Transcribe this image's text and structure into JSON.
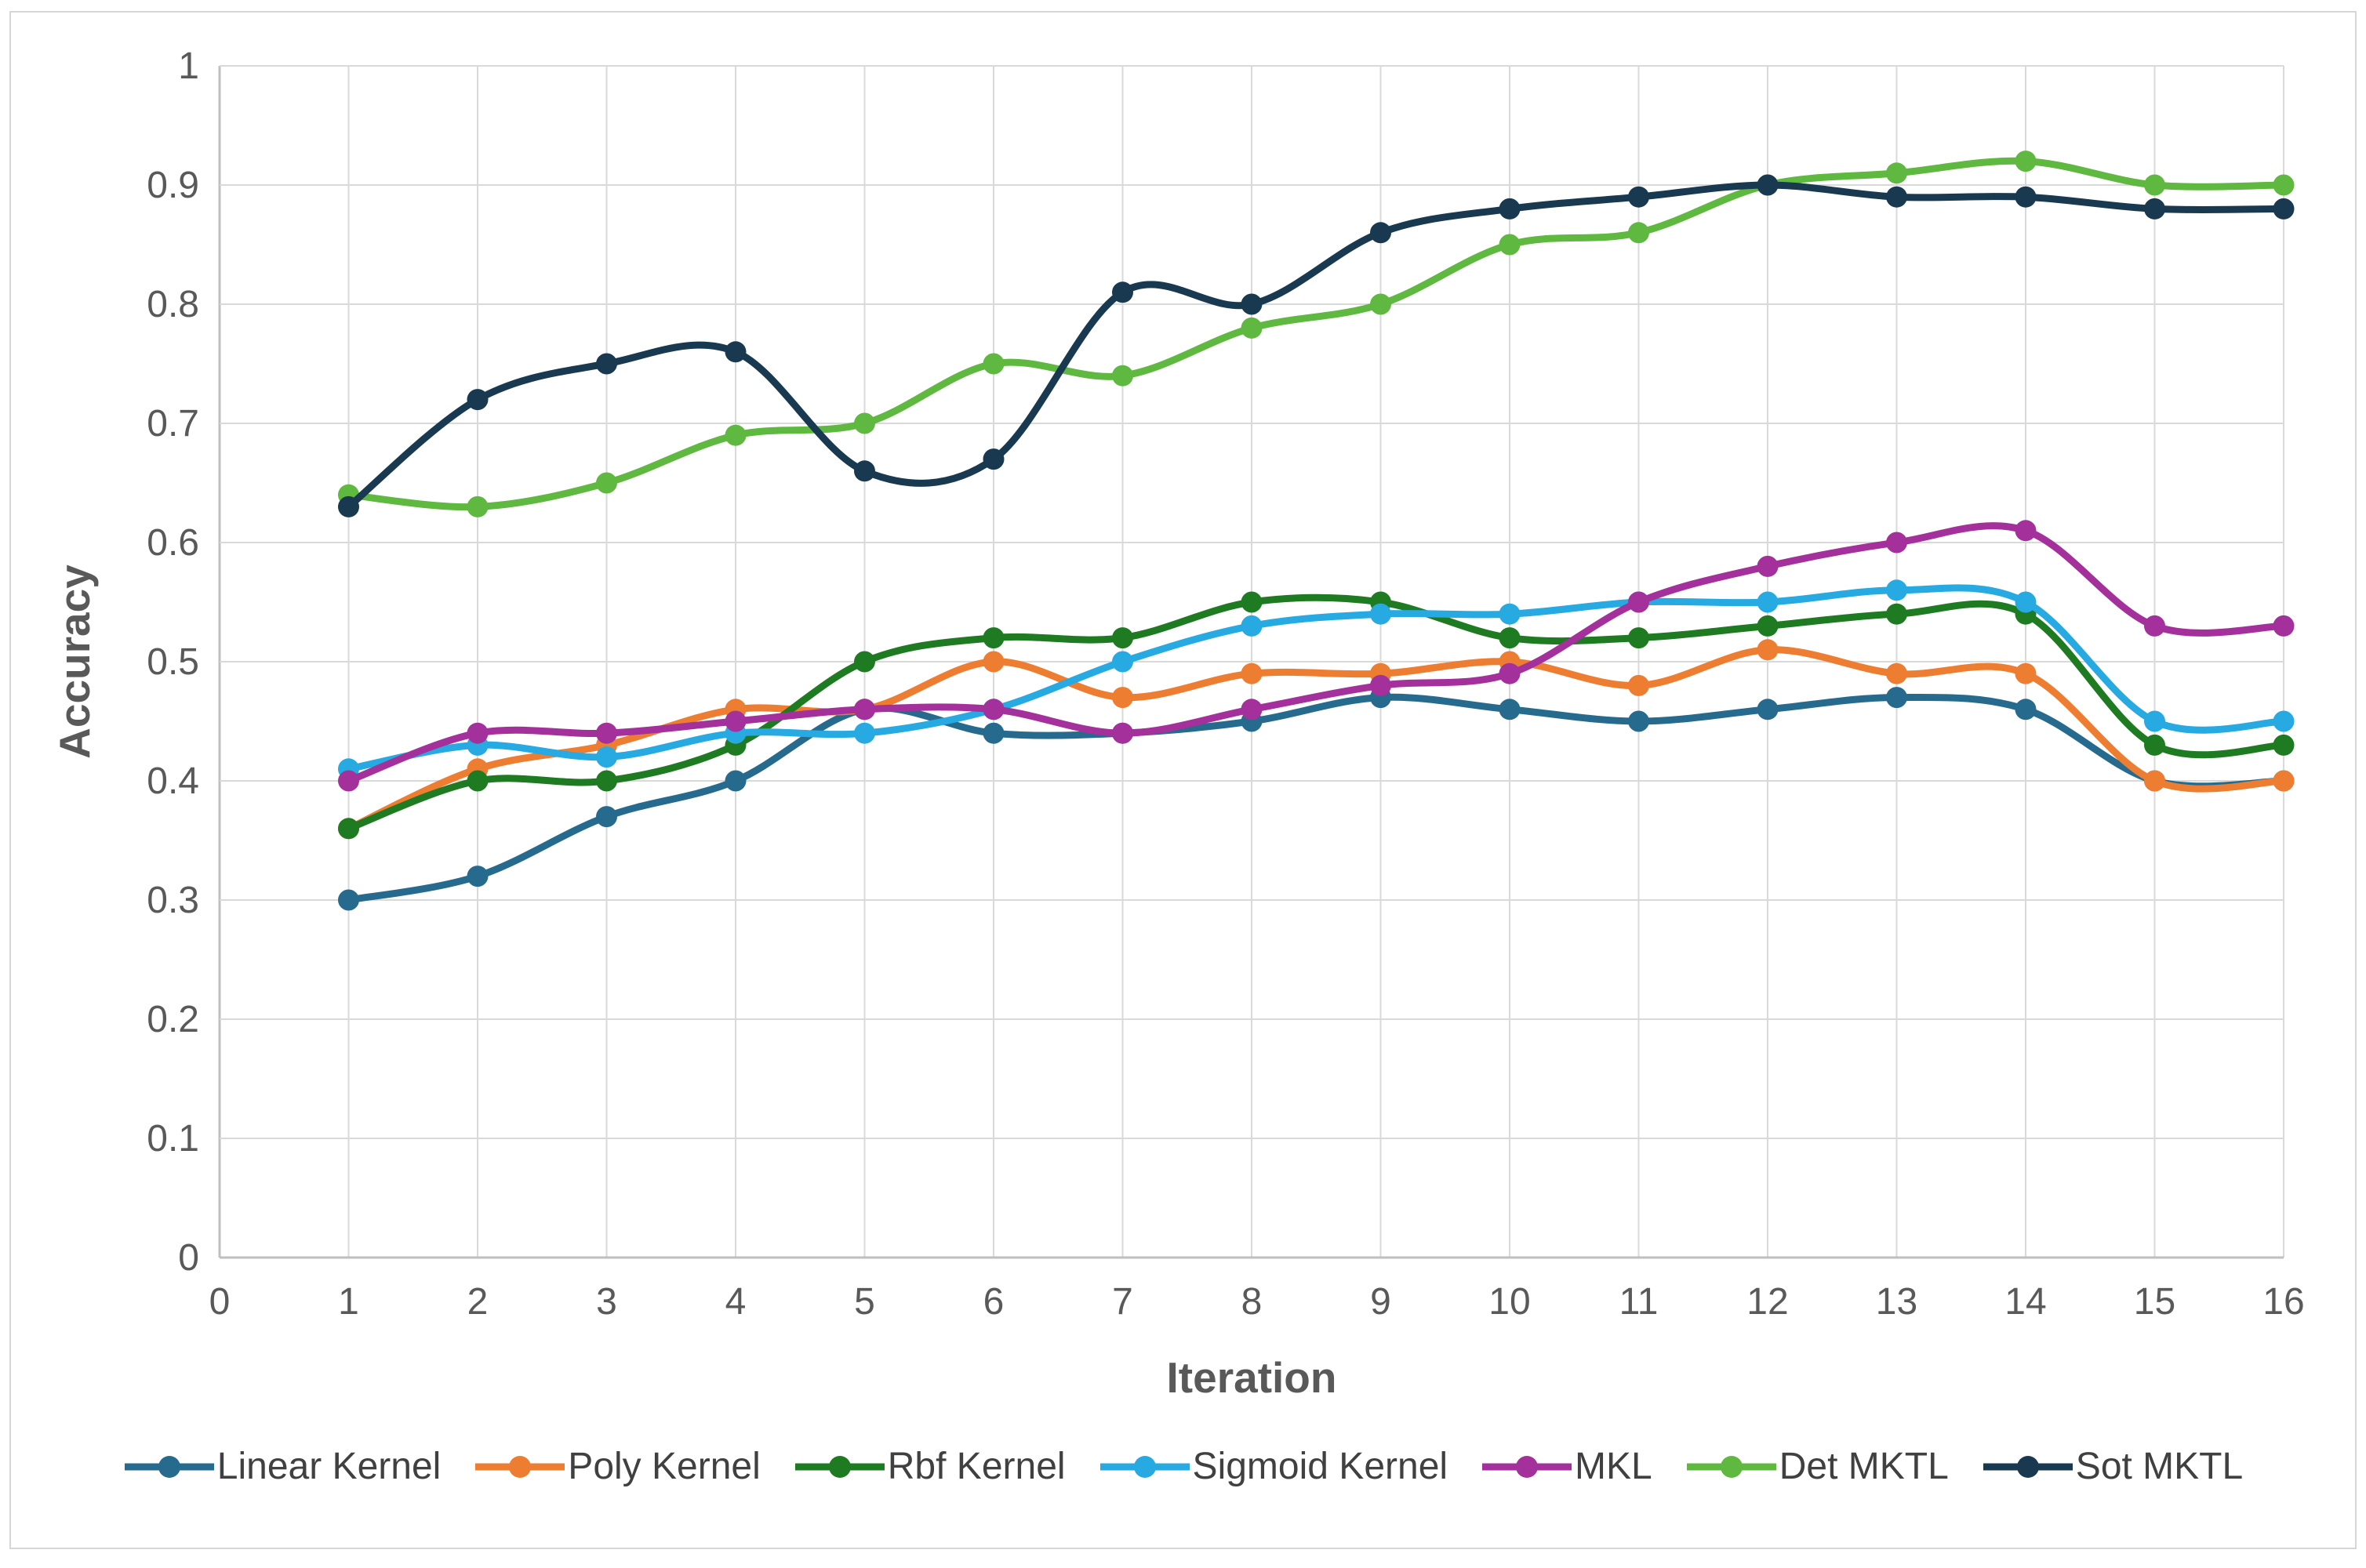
{
  "y_axis": {
    "title": "Accuracy",
    "ticks": [
      "0",
      "0.1",
      "0.2",
      "0.3",
      "0.4",
      "0.5",
      "0.6",
      "0.7",
      "0.8",
      "0.9",
      "1"
    ]
  },
  "x_axis": {
    "title": "Iteration",
    "ticks": [
      "0",
      "1",
      "2",
      "3",
      "4",
      "5",
      "6",
      "7",
      "8",
      "9",
      "10",
      "11",
      "12",
      "13",
      "14",
      "15",
      "16"
    ]
  },
  "colors": {
    "gridline": "#d9d9d9",
    "axisline": "#bfbfbf",
    "text": "#595959"
  },
  "chart_data": {
    "type": "line",
    "title": "",
    "xlabel": "Iteration",
    "ylabel": "Accuracy",
    "xlim": [
      0,
      16
    ],
    "ylim": [
      0,
      1
    ],
    "grid": true,
    "legend_position": "bottom",
    "x": [
      1,
      2,
      3,
      4,
      5,
      6,
      7,
      8,
      9,
      10,
      11,
      12,
      13,
      14,
      15,
      16
    ],
    "series": [
      {
        "name": "Linear Kernel",
        "color": "#266b8e",
        "values": [
          0.3,
          0.32,
          0.37,
          0.4,
          0.46,
          0.44,
          0.44,
          0.45,
          0.47,
          0.46,
          0.45,
          0.46,
          0.47,
          0.46,
          0.4,
          0.4
        ]
      },
      {
        "name": "Poly Kernel",
        "color": "#ed7d31",
        "values": [
          0.36,
          0.41,
          0.43,
          0.46,
          0.46,
          0.5,
          0.47,
          0.49,
          0.49,
          0.5,
          0.48,
          0.51,
          0.49,
          0.49,
          0.4,
          0.4
        ]
      },
      {
        "name": "Rbf Kernel",
        "color": "#1e7b21",
        "values": [
          0.36,
          0.4,
          0.4,
          0.43,
          0.5,
          0.52,
          0.52,
          0.55,
          0.55,
          0.52,
          0.52,
          0.53,
          0.54,
          0.54,
          0.43,
          0.43
        ]
      },
      {
        "name": "Sigmoid Kernel",
        "color": "#27a9e1",
        "values": [
          0.41,
          0.43,
          0.42,
          0.44,
          0.44,
          0.46,
          0.5,
          0.53,
          0.54,
          0.54,
          0.55,
          0.55,
          0.56,
          0.55,
          0.45,
          0.45
        ]
      },
      {
        "name": "MKL",
        "color": "#a3309b",
        "values": [
          0.4,
          0.44,
          0.44,
          0.45,
          0.46,
          0.46,
          0.44,
          0.46,
          0.48,
          0.49,
          0.55,
          0.58,
          0.6,
          0.61,
          0.53,
          0.53
        ]
      },
      {
        "name": "Det MKTL",
        "color": "#5fb83f",
        "values": [
          0.64,
          0.63,
          0.65,
          0.69,
          0.7,
          0.75,
          0.74,
          0.78,
          0.8,
          0.85,
          0.86,
          0.9,
          0.91,
          0.92,
          0.9,
          0.9
        ]
      },
      {
        "name": "Sot MKTL",
        "color": "#18394f",
        "values": [
          0.63,
          0.72,
          0.75,
          0.76,
          0.66,
          0.67,
          0.81,
          0.8,
          0.86,
          0.88,
          0.89,
          0.9,
          0.89,
          0.89,
          0.88,
          0.88
        ]
      }
    ]
  }
}
